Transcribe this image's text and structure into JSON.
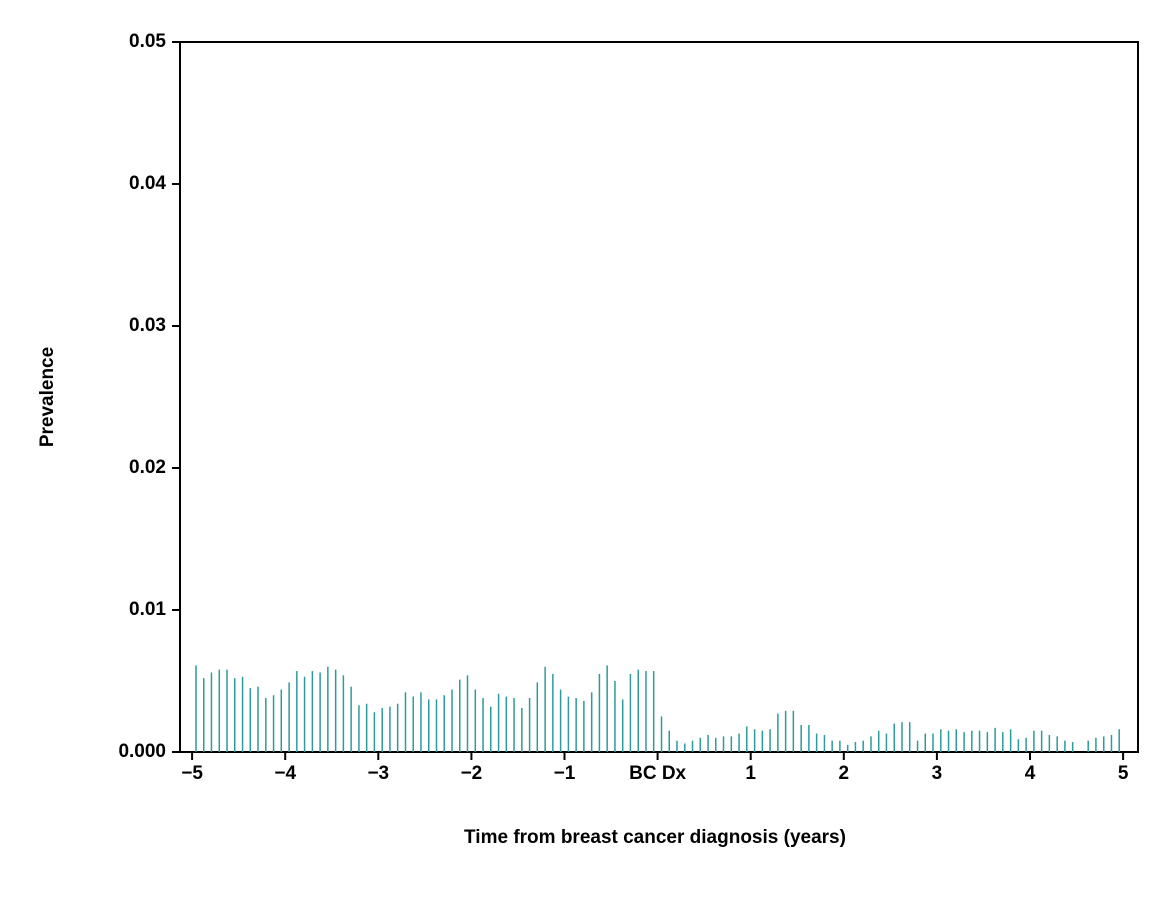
{
  "chart_data": {
    "type": "needle",
    "x_label": "Time from breast cancer diagnosis (years)",
    "y_label": "Prevalence",
    "color": "#2e9a9a",
    "xlim": [
      -5.13,
      5.16
    ],
    "ylim": [
      0,
      0.05
    ],
    "xticks": [
      {
        "value": -5,
        "label": "−5"
      },
      {
        "value": -4,
        "label": "−4"
      },
      {
        "value": -3,
        "label": "−3"
      },
      {
        "value": -2,
        "label": "−2"
      },
      {
        "value": -1,
        "label": "−1"
      },
      {
        "value": 0,
        "label": "BC Dx"
      },
      1,
      2,
      3,
      4,
      5
    ],
    "yticks": [
      {
        "value": 0,
        "label": "0.000"
      },
      0.01,
      0.02,
      0.03,
      0.04,
      0.05
    ],
    "x": [
      -4.958,
      -4.875,
      -4.792,
      -4.708,
      -4.625,
      -4.542,
      -4.458,
      -4.375,
      -4.292,
      -4.208,
      -4.125,
      -4.042,
      -3.958,
      -3.875,
      -3.792,
      -3.708,
      -3.625,
      -3.542,
      -3.458,
      -3.375,
      -3.292,
      -3.208,
      -3.125,
      -3.042,
      -2.958,
      -2.875,
      -2.792,
      -2.708,
      -2.625,
      -2.542,
      -2.458,
      -2.375,
      -2.292,
      -2.208,
      -2.125,
      -2.042,
      -1.958,
      -1.875,
      -1.792,
      -1.708,
      -1.625,
      -1.542,
      -1.458,
      -1.375,
      -1.292,
      -1.208,
      -1.125,
      -1.042,
      -0.958,
      -0.875,
      -0.792,
      -0.708,
      -0.625,
      -0.542,
      -0.458,
      -0.375,
      -0.292,
      -0.208,
      -0.125,
      -0.042,
      0.042,
      0.125,
      0.208,
      0.292,
      0.375,
      0.458,
      0.542,
      0.625,
      0.708,
      0.792,
      0.875,
      0.958,
      1.042,
      1.125,
      1.208,
      1.292,
      1.375,
      1.458,
      1.542,
      1.625,
      1.708,
      1.792,
      1.875,
      1.958,
      2.042,
      2.125,
      2.208,
      2.292,
      2.375,
      2.458,
      2.542,
      2.625,
      2.708,
      2.792,
      2.875,
      2.958,
      3.042,
      3.125,
      3.208,
      3.292,
      3.375,
      3.458,
      3.542,
      3.625,
      3.708,
      3.792,
      3.875,
      3.958,
      4.042,
      4.125,
      4.208,
      4.292,
      4.375,
      4.458,
      4.542,
      4.625,
      4.708,
      4.792,
      4.875,
      4.958
    ],
    "values": [
      0.0061,
      0.0052,
      0.0056,
      0.0058,
      0.0058,
      0.0052,
      0.0053,
      0.0045,
      0.0046,
      0.0038,
      0.004,
      0.0044,
      0.0049,
      0.0057,
      0.0053,
      0.0057,
      0.0056,
      0.006,
      0.0058,
      0.0054,
      0.0046,
      0.0033,
      0.0034,
      0.0028,
      0.0031,
      0.0032,
      0.0034,
      0.0042,
      0.0039,
      0.0042,
      0.0037,
      0.0037,
      0.004,
      0.0044,
      0.0051,
      0.0054,
      0.0044,
      0.0038,
      0.0032,
      0.0041,
      0.0039,
      0.0038,
      0.0031,
      0.0038,
      0.0049,
      0.006,
      0.0055,
      0.0044,
      0.0039,
      0.0038,
      0.0036,
      0.0042,
      0.0055,
      0.0061,
      0.005,
      0.0037,
      0.0055,
      0.0058,
      0.0057,
      0.0057,
      0.0025,
      0.0015,
      0.0008,
      0.0006,
      0.0008,
      0.001,
      0.0012,
      0.001,
      0.0011,
      0.0011,
      0.0013,
      0.0018,
      0.0016,
      0.0015,
      0.0016,
      0.0027,
      0.0029,
      0.0029,
      0.0019,
      0.0019,
      0.0013,
      0.0012,
      0.0008,
      0.0008,
      0.0005,
      0.0007,
      0.0008,
      0.0011,
      0.0015,
      0.0013,
      0.002,
      0.0021,
      0.0021,
      0.0008,
      0.0013,
      0.0013,
      0.0016,
      0.0015,
      0.0016,
      0.0014,
      0.0015,
      0.0015,
      0.0014,
      0.0017,
      0.0014,
      0.0016,
      0.0009,
      0.001,
      0.0015,
      0.0015,
      0.0012,
      0.0011,
      0.0008,
      0.0007,
      0,
      0.0008,
      0.001,
      0.0011,
      0.0012,
      0.0016
    ]
  }
}
